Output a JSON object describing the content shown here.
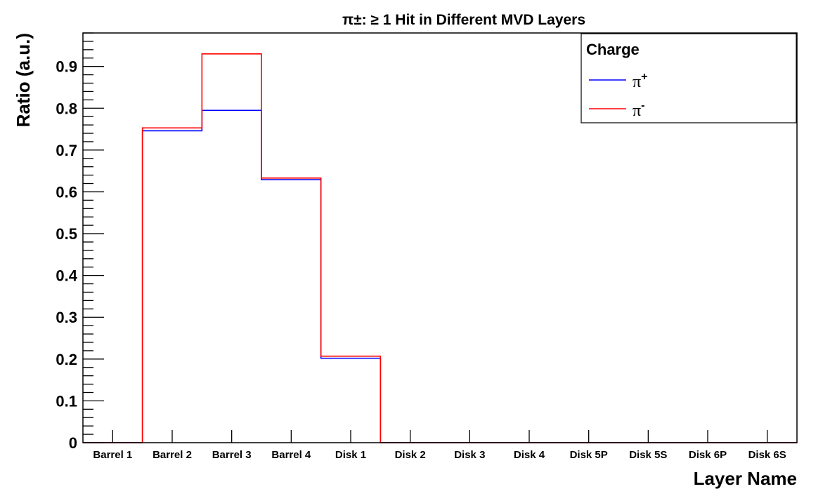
{
  "chart_data": {
    "type": "bar",
    "style": "step-histogram",
    "title": "π±: ≥ 1 Hit in Different MVD Layers",
    "xlabel": "Layer Name",
    "ylabel": "Ratio (a.u.)",
    "ylim": [
      0,
      0.98
    ],
    "yticks": [
      "0",
      "0.1",
      "0.2",
      "0.3",
      "0.4",
      "0.5",
      "0.6",
      "0.7",
      "0.8",
      "0.9"
    ],
    "categories": [
      "Barrel 1",
      "Barrel 2",
      "Barrel 3",
      "Barrel 4",
      "Disk 1",
      "Disk 2",
      "Disk 3",
      "Disk 4",
      "Disk 5P",
      "Disk 5S",
      "Disk 6P",
      "Disk 6S"
    ],
    "grid": false,
    "legend": {
      "title": "Charge",
      "placement": "top-right"
    },
    "series": [
      {
        "name": "π+",
        "label_base": "π",
        "label_sup": "+",
        "color": "#0000ff",
        "values": [
          0,
          0.746,
          0.795,
          0.629,
          0.202,
          0,
          0,
          0,
          0,
          0,
          0,
          0
        ]
      },
      {
        "name": "π-",
        "label_base": "π",
        "label_sup": "-",
        "color": "#ff0000",
        "values": [
          0,
          0.753,
          0.93,
          0.633,
          0.207,
          0,
          0,
          0,
          0,
          0,
          0,
          0
        ]
      }
    ]
  }
}
